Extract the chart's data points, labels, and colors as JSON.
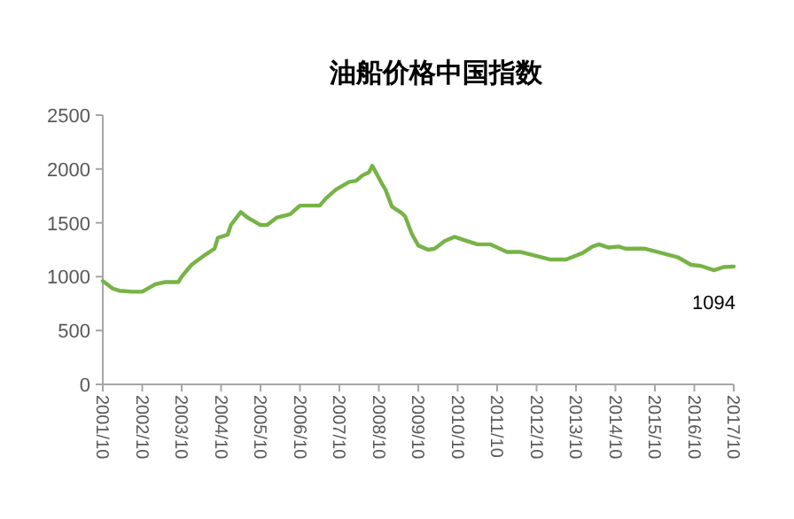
{
  "chart_data": {
    "type": "line",
    "title": "油船价格中国指数",
    "x": [
      "2001-10",
      "2002-01",
      "2002-03",
      "2002-07",
      "2002-10",
      "2003-02",
      "2003-05",
      "2003-09",
      "2003-10",
      "2004-01",
      "2004-05",
      "2004-08",
      "2004-09",
      "2004-12",
      "2005-01",
      "2005-04",
      "2005-06",
      "2005-10",
      "2005-12",
      "2006-03",
      "2006-07",
      "2006-10",
      "2007-04",
      "2007-06",
      "2007-09",
      "2008-01",
      "2008-03",
      "2008-05",
      "2008-07",
      "2008-08",
      "2008-11",
      "2008-12",
      "2009-02",
      "2009-05",
      "2009-06",
      "2009-08",
      "2009-10",
      "2010-01",
      "2010-03",
      "2010-06",
      "2010-09",
      "2010-12",
      "2011-04",
      "2011-08",
      "2012-01",
      "2012-05",
      "2012-09",
      "2013-02",
      "2013-07",
      "2013-12",
      "2014-03",
      "2014-05",
      "2014-08",
      "2014-11",
      "2015-01",
      "2015-07",
      "2015-12",
      "2016-05",
      "2016-09",
      "2016-12",
      "2017-04",
      "2017-07",
      "2017-10"
    ],
    "values": [
      960,
      890,
      870,
      860,
      860,
      930,
      950,
      950,
      1000,
      1110,
      1200,
      1260,
      1360,
      1390,
      1480,
      1600,
      1550,
      1480,
      1480,
      1550,
      1580,
      1660,
      1660,
      1730,
      1810,
      1880,
      1890,
      1940,
      1970,
      2030,
      1860,
      1810,
      1650,
      1590,
      1560,
      1400,
      1290,
      1250,
      1260,
      1330,
      1370,
      1340,
      1300,
      1300,
      1230,
      1230,
      1200,
      1160,
      1160,
      1220,
      1280,
      1300,
      1270,
      1280,
      1260,
      1260,
      1220,
      1180,
      1110,
      1100,
      1060,
      1090,
      1094
    ],
    "value_labels": [
      null,
      null,
      null,
      null,
      null,
      null,
      null,
      null,
      null,
      null,
      null,
      null,
      null,
      null,
      null,
      null,
      null,
      null,
      null,
      null,
      null,
      null,
      null,
      null,
      null,
      null,
      null,
      null,
      null,
      null,
      null,
      null,
      null,
      null,
      null,
      null,
      null,
      null,
      null,
      null,
      null,
      null,
      null,
      null,
      null,
      null,
      null,
      null,
      null,
      null,
      null,
      null,
      null,
      null,
      null,
      null,
      null,
      null,
      null,
      null,
      null,
      null,
      "1094"
    ],
    "color": "#77b347",
    "ylim": [
      0,
      2500
    ],
    "yticks": [
      0,
      500,
      1000,
      1500,
      2000,
      2500
    ],
    "xlim": [
      "2001-10",
      "2017-10"
    ],
    "xticks": [
      {
        "value": "2001-10",
        "label": "2001/10"
      },
      {
        "value": "2002-10",
        "label": "2002/10"
      },
      {
        "value": "2003-10",
        "label": "2003/10"
      },
      {
        "value": "2004-10",
        "label": "2004/10"
      },
      {
        "value": "2005-10",
        "label": "2005/10"
      },
      {
        "value": "2006-10",
        "label": "2006/10"
      },
      {
        "value": "2007-10",
        "label": "2007/10"
      },
      {
        "value": "2008-10",
        "label": "2008/10"
      },
      {
        "value": "2009-10",
        "label": "2009/10"
      },
      {
        "value": "2010-10",
        "label": "2010/10"
      },
      {
        "value": "2011-10",
        "label": "2011/10"
      },
      {
        "value": "2012-10",
        "label": "2012/10"
      },
      {
        "value": "2013-10",
        "label": "2013/10"
      },
      {
        "value": "2014-10",
        "label": "2014/10"
      },
      {
        "value": "2015-10",
        "label": "2015/10"
      },
      {
        "value": "2016-10",
        "label": "2016/10"
      },
      {
        "value": "2017-10",
        "label": "2017/10"
      }
    ],
    "grid": false,
    "marker": "none",
    "line_style": "solid"
  }
}
